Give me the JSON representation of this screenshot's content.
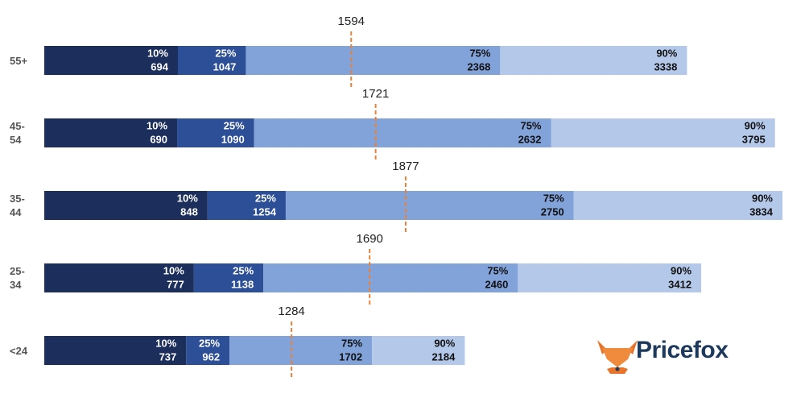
{
  "chart_data": {
    "type": "percentile-bar",
    "categories": [
      "55+",
      "45-54",
      "35-44",
      "25-34",
      "<24"
    ],
    "series": [
      {
        "name": "10%",
        "color": "#1b2e5c",
        "values": [
          694,
          690,
          848,
          777,
          737
        ]
      },
      {
        "name": "25%",
        "color": "#2d4f97",
        "values": [
          1047,
          1090,
          1254,
          1138,
          962
        ]
      },
      {
        "name": "75%",
        "color": "#82a2da",
        "values": [
          2368,
          2632,
          2750,
          2460,
          1702
        ]
      },
      {
        "name": "90%",
        "color": "#b4c8ea",
        "values": [
          3338,
          3795,
          3834,
          3412,
          2184
        ]
      }
    ],
    "medians": [
      1594,
      1721,
      1877,
      1690,
      1284
    ],
    "median_color": "#e8823a",
    "logo": "Pricefox"
  }
}
